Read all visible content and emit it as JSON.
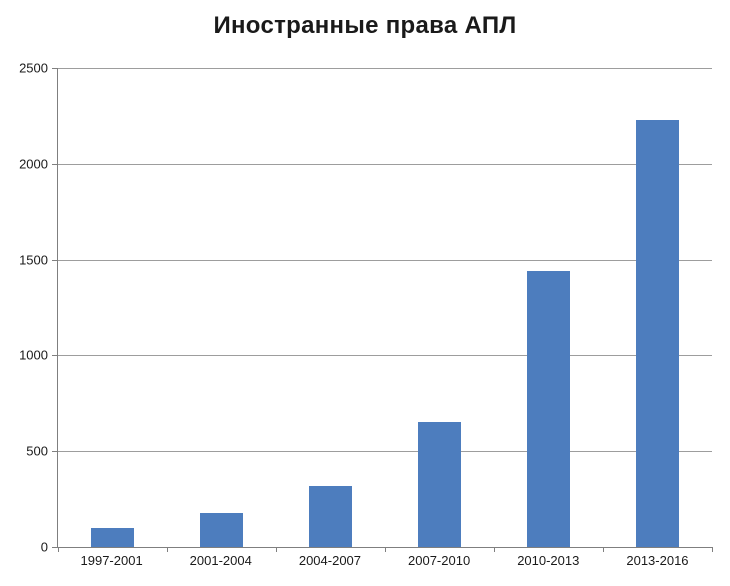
{
  "chart_data": {
    "type": "bar",
    "title": "Иностранные права АПЛ",
    "categories": [
      "1997-2001",
      "2001-2004",
      "2004-2007",
      "2007-2010",
      "2010-2013",
      "2013-2016"
    ],
    "values": [
      100,
      180,
      320,
      650,
      1440,
      2230
    ],
    "xlabel": "",
    "ylabel": "",
    "ylim": [
      0,
      2500
    ],
    "ytick_step": 500,
    "grid": true,
    "legend_position": "none",
    "bar_color": "#4d7dbe",
    "gridline_color": "#9d9d9d",
    "axis_color": "#7f7f7f",
    "text_color": "#1a1a1a",
    "background_color": "#ffffff"
  }
}
